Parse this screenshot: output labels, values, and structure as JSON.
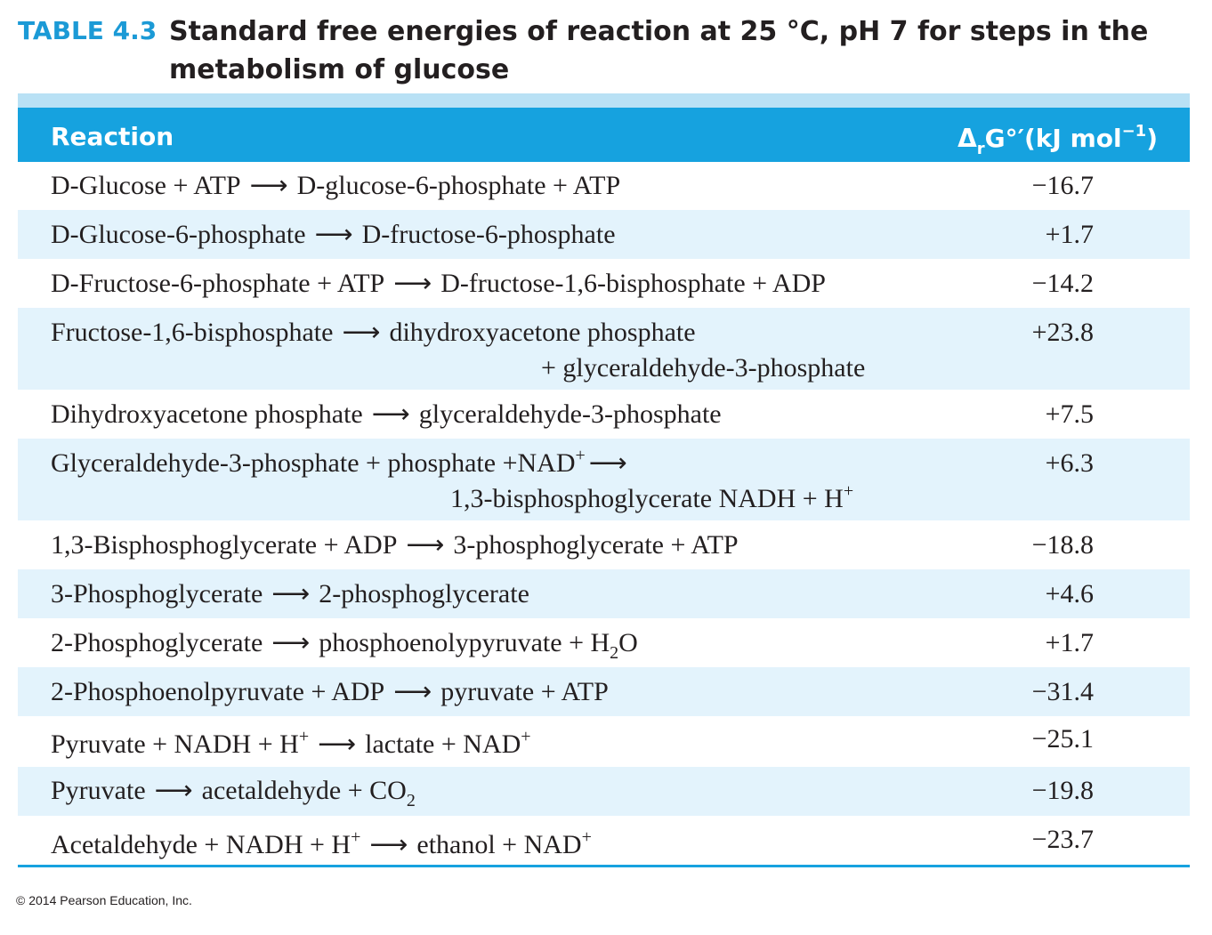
{
  "table": {
    "label": "TABLE 4.3",
    "title": "Standard free energies of reaction at 25 °C, pH 7 for steps in the metabolism of glucose",
    "header_reaction": "Reaction",
    "header_energy_delta": "Δ",
    "header_energy_sub": "r",
    "header_energy_mid": "G°′(kJ mol",
    "header_energy_sup": "−1",
    "header_energy_end": ")",
    "arrow": "⟶",
    "rows": [
      {
        "reactant": "D-Glucose + ATP",
        "product": "D-glucose-6-phosphate + ATP",
        "value": "−16.7"
      },
      {
        "reactant": "D-Glucose-6-phosphate",
        "product": "D-fructose-6-phosphate",
        "value": "+1.7"
      },
      {
        "reactant": "D-Fructose-6-phosphate + ATP",
        "product": "D-fructose-1,6-bisphosphate + ADP",
        "value": "−14.2"
      },
      {
        "reactant": "Fructose-1,6-bisphosphate",
        "product": "dihydroxyacetone phosphate",
        "product2": "+ glyceraldehyde-3-phosphate",
        "value": "+23.8"
      },
      {
        "reactant": "Dihydroxyacetone phosphate",
        "product": "glyceraldehyde-3-phosphate",
        "value": "+7.5"
      },
      {
        "reactant_a": "Glyceraldehyde-3-phosphate + phosphate +NAD",
        "reactant_sup": "+",
        "product_a": "1,3-bisphosphoglycerate NADH + H",
        "product_sup": "+",
        "value": "+6.3"
      },
      {
        "reactant": "1,3-Bisphosphoglycerate + ADP",
        "product": "3-phosphoglycerate + ATP",
        "value": "−18.8"
      },
      {
        "reactant": "3-Phosphoglycerate",
        "product": "2-phosphoglycerate",
        "value": "+4.6"
      },
      {
        "reactant": "2-Phosphoglycerate",
        "product_a": "phosphoenolypyruvate + H",
        "product_sub": "2",
        "product_b": "O",
        "value": "+1.7"
      },
      {
        "reactant": "2-Phosphoenolpyruvate + ADP",
        "product": "pyruvate + ATP",
        "value": "−31.4"
      },
      {
        "reactant_a": "Pyruvate + NADH + H",
        "reactant_sup": "+",
        "product_a": "lactate + NAD",
        "product_sup": "+",
        "value": "−25.1"
      },
      {
        "reactant": "Pyruvate",
        "product_a": "acetaldehyde + CO",
        "product_sub": "2",
        "value": "−19.8"
      },
      {
        "reactant_a": "Acetaldehyde + NADH + H",
        "reactant_sup": "+",
        "product_a": "ethanol + NAD",
        "product_sup": "+",
        "value": "−23.7"
      }
    ]
  },
  "footer": {
    "copyright": "© 2014 Pearson Education, Inc."
  },
  "colors": {
    "accent": "#16a2df",
    "row_shade": "#e3f3fc",
    "top_rule": "#b9e1f5",
    "text": "#231f20"
  }
}
